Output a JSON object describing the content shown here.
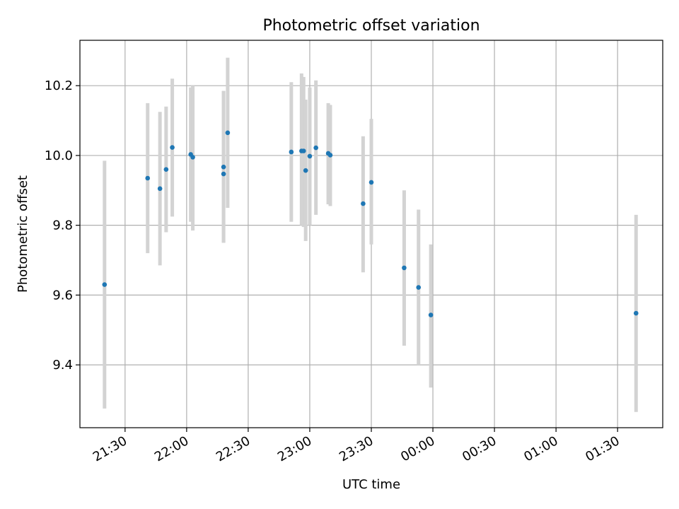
{
  "chart_data": {
    "type": "scatter",
    "title": "Photometric offset variation",
    "xlabel": "UTC time",
    "ylabel": "Photometric offset",
    "x_ticks": [
      "21:30",
      "22:00",
      "22:30",
      "23:00",
      "23:30",
      "00:00",
      "00:30",
      "01:00",
      "01:30"
    ],
    "y_ticks": [
      "9.4",
      "9.6",
      "9.8",
      "10.0",
      "10.2"
    ],
    "ylim": [
      9.22,
      10.33
    ],
    "xlim": [
      "21:08",
      "01:52"
    ],
    "grid": true,
    "colors": {
      "points": "#1f77b4",
      "errorbars": "#d3d3d3",
      "grid": "#b0b0b0"
    },
    "points": [
      {
        "x": "21:20",
        "y": 9.63,
        "ylow": 9.275,
        "yhigh": 9.985
      },
      {
        "x": "21:41",
        "y": 9.935,
        "ylow": 9.72,
        "yhigh": 10.15
      },
      {
        "x": "21:47",
        "y": 9.905,
        "ylow": 9.685,
        "yhigh": 10.125
      },
      {
        "x": "21:50",
        "y": 9.96,
        "ylow": 9.78,
        "yhigh": 10.14
      },
      {
        "x": "21:53",
        "y": 10.023,
        "ylow": 9.825,
        "yhigh": 10.22
      },
      {
        "x": "22:02",
        "y": 10.003,
        "ylow": 9.81,
        "yhigh": 10.195
      },
      {
        "x": "22:03",
        "y": 9.995,
        "ylow": 9.785,
        "yhigh": 10.2
      },
      {
        "x": "22:18",
        "y": 9.967,
        "ylow": 9.75,
        "yhigh": 10.185
      },
      {
        "x": "22:18",
        "y": 9.947,
        "ylow": 9.75,
        "yhigh": 10.185
      },
      {
        "x": "22:20",
        "y": 10.065,
        "ylow": 9.85,
        "yhigh": 10.28
      },
      {
        "x": "22:51",
        "y": 10.01,
        "ylow": 9.81,
        "yhigh": 10.21
      },
      {
        "x": "22:56",
        "y": 10.013,
        "ylow": 9.8,
        "yhigh": 10.235
      },
      {
        "x": "22:57",
        "y": 10.013,
        "ylow": 9.795,
        "yhigh": 10.225
      },
      {
        "x": "22:58",
        "y": 9.957,
        "ylow": 9.755,
        "yhigh": 10.16
      },
      {
        "x": "23:00",
        "y": 9.998,
        "ylow": 9.8,
        "yhigh": 10.195
      },
      {
        "x": "23:03",
        "y": 10.022,
        "ylow": 9.83,
        "yhigh": 10.215
      },
      {
        "x": "23:09",
        "y": 10.006,
        "ylow": 9.86,
        "yhigh": 10.15
      },
      {
        "x": "23:10",
        "y": 10.001,
        "ylow": 9.855,
        "yhigh": 10.145
      },
      {
        "x": "23:26",
        "y": 9.862,
        "ylow": 9.665,
        "yhigh": 10.055
      },
      {
        "x": "23:30",
        "y": 9.923,
        "ylow": 9.745,
        "yhigh": 10.105
      },
      {
        "x": "23:46",
        "y": 9.678,
        "ylow": 9.455,
        "yhigh": 9.9
      },
      {
        "x": "23:53",
        "y": 9.622,
        "ylow": 9.4,
        "yhigh": 9.845
      },
      {
        "x": "23:59",
        "y": 9.543,
        "ylow": 9.335,
        "yhigh": 9.745
      },
      {
        "x": "01:39",
        "y": 9.548,
        "ylow": 9.265,
        "yhigh": 9.83
      }
    ]
  }
}
